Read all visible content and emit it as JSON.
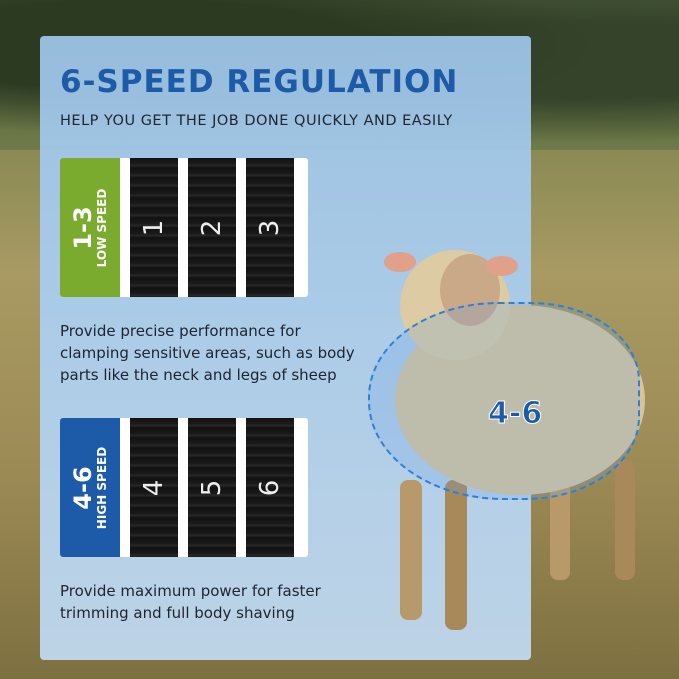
{
  "title": "6-SPEED REGULATION",
  "subtitle": "HELP YOU GET THE JOB DONE QUICKLY AND EASILY",
  "low": {
    "range": "1-3",
    "label": "LOW SPEED",
    "color": "#7aaa2e",
    "gears": [
      "1",
      "2",
      "3"
    ],
    "description": "Provide precise performance for clamping sensitive areas, such as body parts like the neck and legs of sheep"
  },
  "high": {
    "range": "4-6",
    "label": "HIGH SPEED",
    "color": "#1d5aa8",
    "gears": [
      "4",
      "5",
      "6"
    ],
    "description": "Provide maximum power for faster trimming and full body shaving"
  },
  "zone_label": "4-6"
}
